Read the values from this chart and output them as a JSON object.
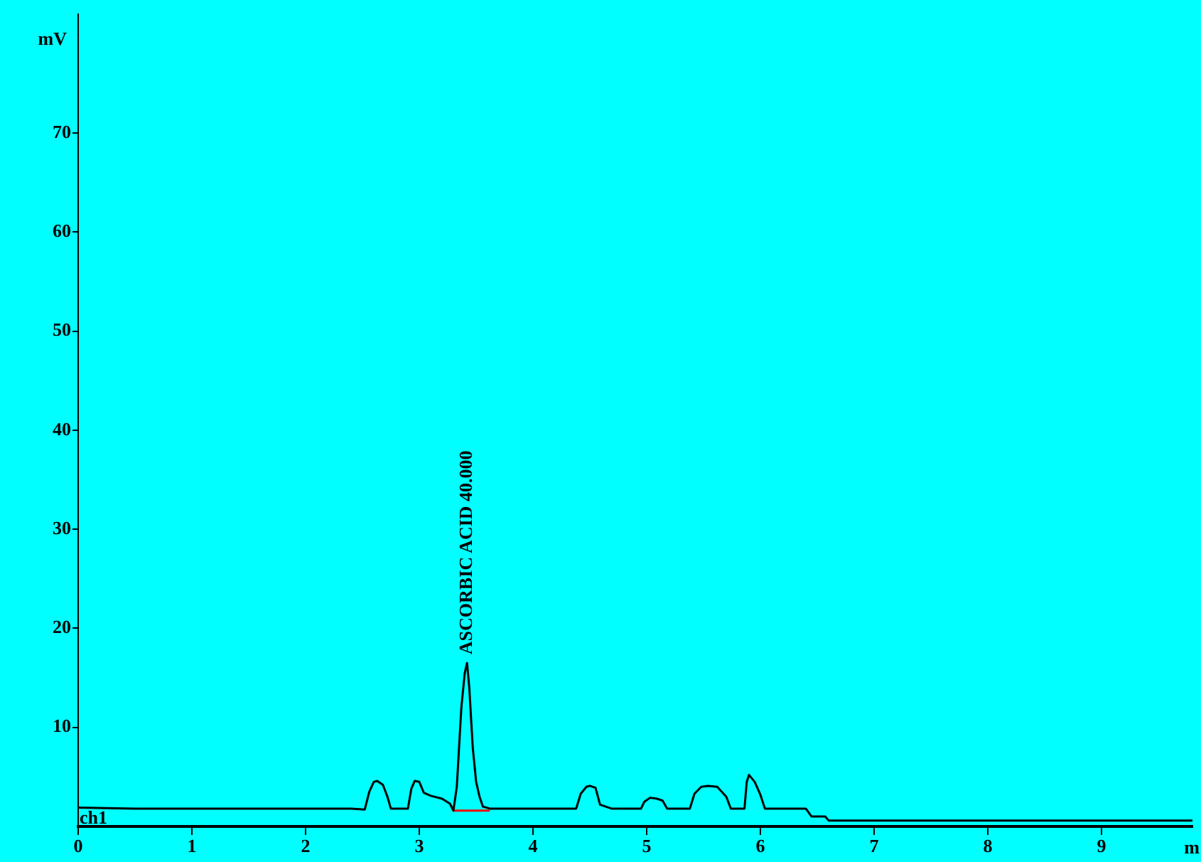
{
  "chart_data": {
    "type": "line",
    "xlabel": "m",
    "ylabel": "mV",
    "xlim": [
      0,
      9.8
    ],
    "xticks": [
      0,
      1,
      2,
      3,
      4,
      5,
      6,
      7,
      8,
      9
    ],
    "ylim": [
      0,
      82
    ],
    "yticks": [
      10,
      20,
      30,
      40,
      50,
      60,
      70
    ],
    "grid": false,
    "legend": false,
    "marker": "none",
    "line_style": "solid",
    "series": [
      {
        "color": "#000000",
        "x": [
          0,
          0.5,
          1,
          1.5,
          2,
          2.4,
          2.52,
          2.56,
          2.6,
          2.63,
          2.68,
          2.72,
          2.75,
          2.9,
          2.93,
          2.96,
          3.0,
          3.04,
          3.1,
          3.2,
          3.27,
          3.3,
          3.33,
          3.37,
          3.4,
          3.42,
          3.44,
          3.47,
          3.5,
          3.53,
          3.56,
          3.62,
          4.0,
          4.38,
          4.42,
          4.47,
          4.5,
          4.55,
          4.59,
          4.64,
          4.69,
          4.95,
          4.98,
          5.03,
          5.09,
          5.14,
          5.18,
          5.38,
          5.42,
          5.48,
          5.54,
          5.62,
          5.7,
          5.74,
          5.86,
          5.88,
          5.9,
          5.95,
          6.0,
          6.04,
          6.4,
          6.45,
          6.57,
          6.6,
          9.8
        ],
        "values": [
          1.9,
          1.8,
          1.8,
          1.8,
          1.8,
          1.8,
          1.7,
          3.5,
          4.5,
          4.6,
          4.2,
          3,
          1.8,
          1.8,
          3.8,
          4.6,
          4.5,
          3.4,
          3.1,
          2.8,
          2.3,
          1.6,
          4,
          12,
          15.5,
          16.5,
          14,
          8,
          4.5,
          3,
          2,
          1.8,
          1.8,
          1.8,
          3.3,
          4,
          4.1,
          3.9,
          2.2,
          2,
          1.8,
          1.8,
          2.5,
          2.9,
          2.8,
          2.6,
          1.8,
          1.8,
          3.3,
          4,
          4.1,
          4,
          3,
          1.8,
          1.8,
          4.5,
          5.2,
          4.5,
          3.2,
          1.8,
          1.8,
          1.0,
          1.0,
          0.6,
          0.6
        ]
      },
      {
        "color": "#ff0000",
        "x": [
          3.3,
          3.62
        ],
        "values": [
          1.6,
          1.6
        ]
      }
    ],
    "annotations": [
      {
        "text": "ASCORBIC ACID 40.000",
        "x": 3.42,
        "y": 16.5
      },
      "ch1"
    ]
  }
}
